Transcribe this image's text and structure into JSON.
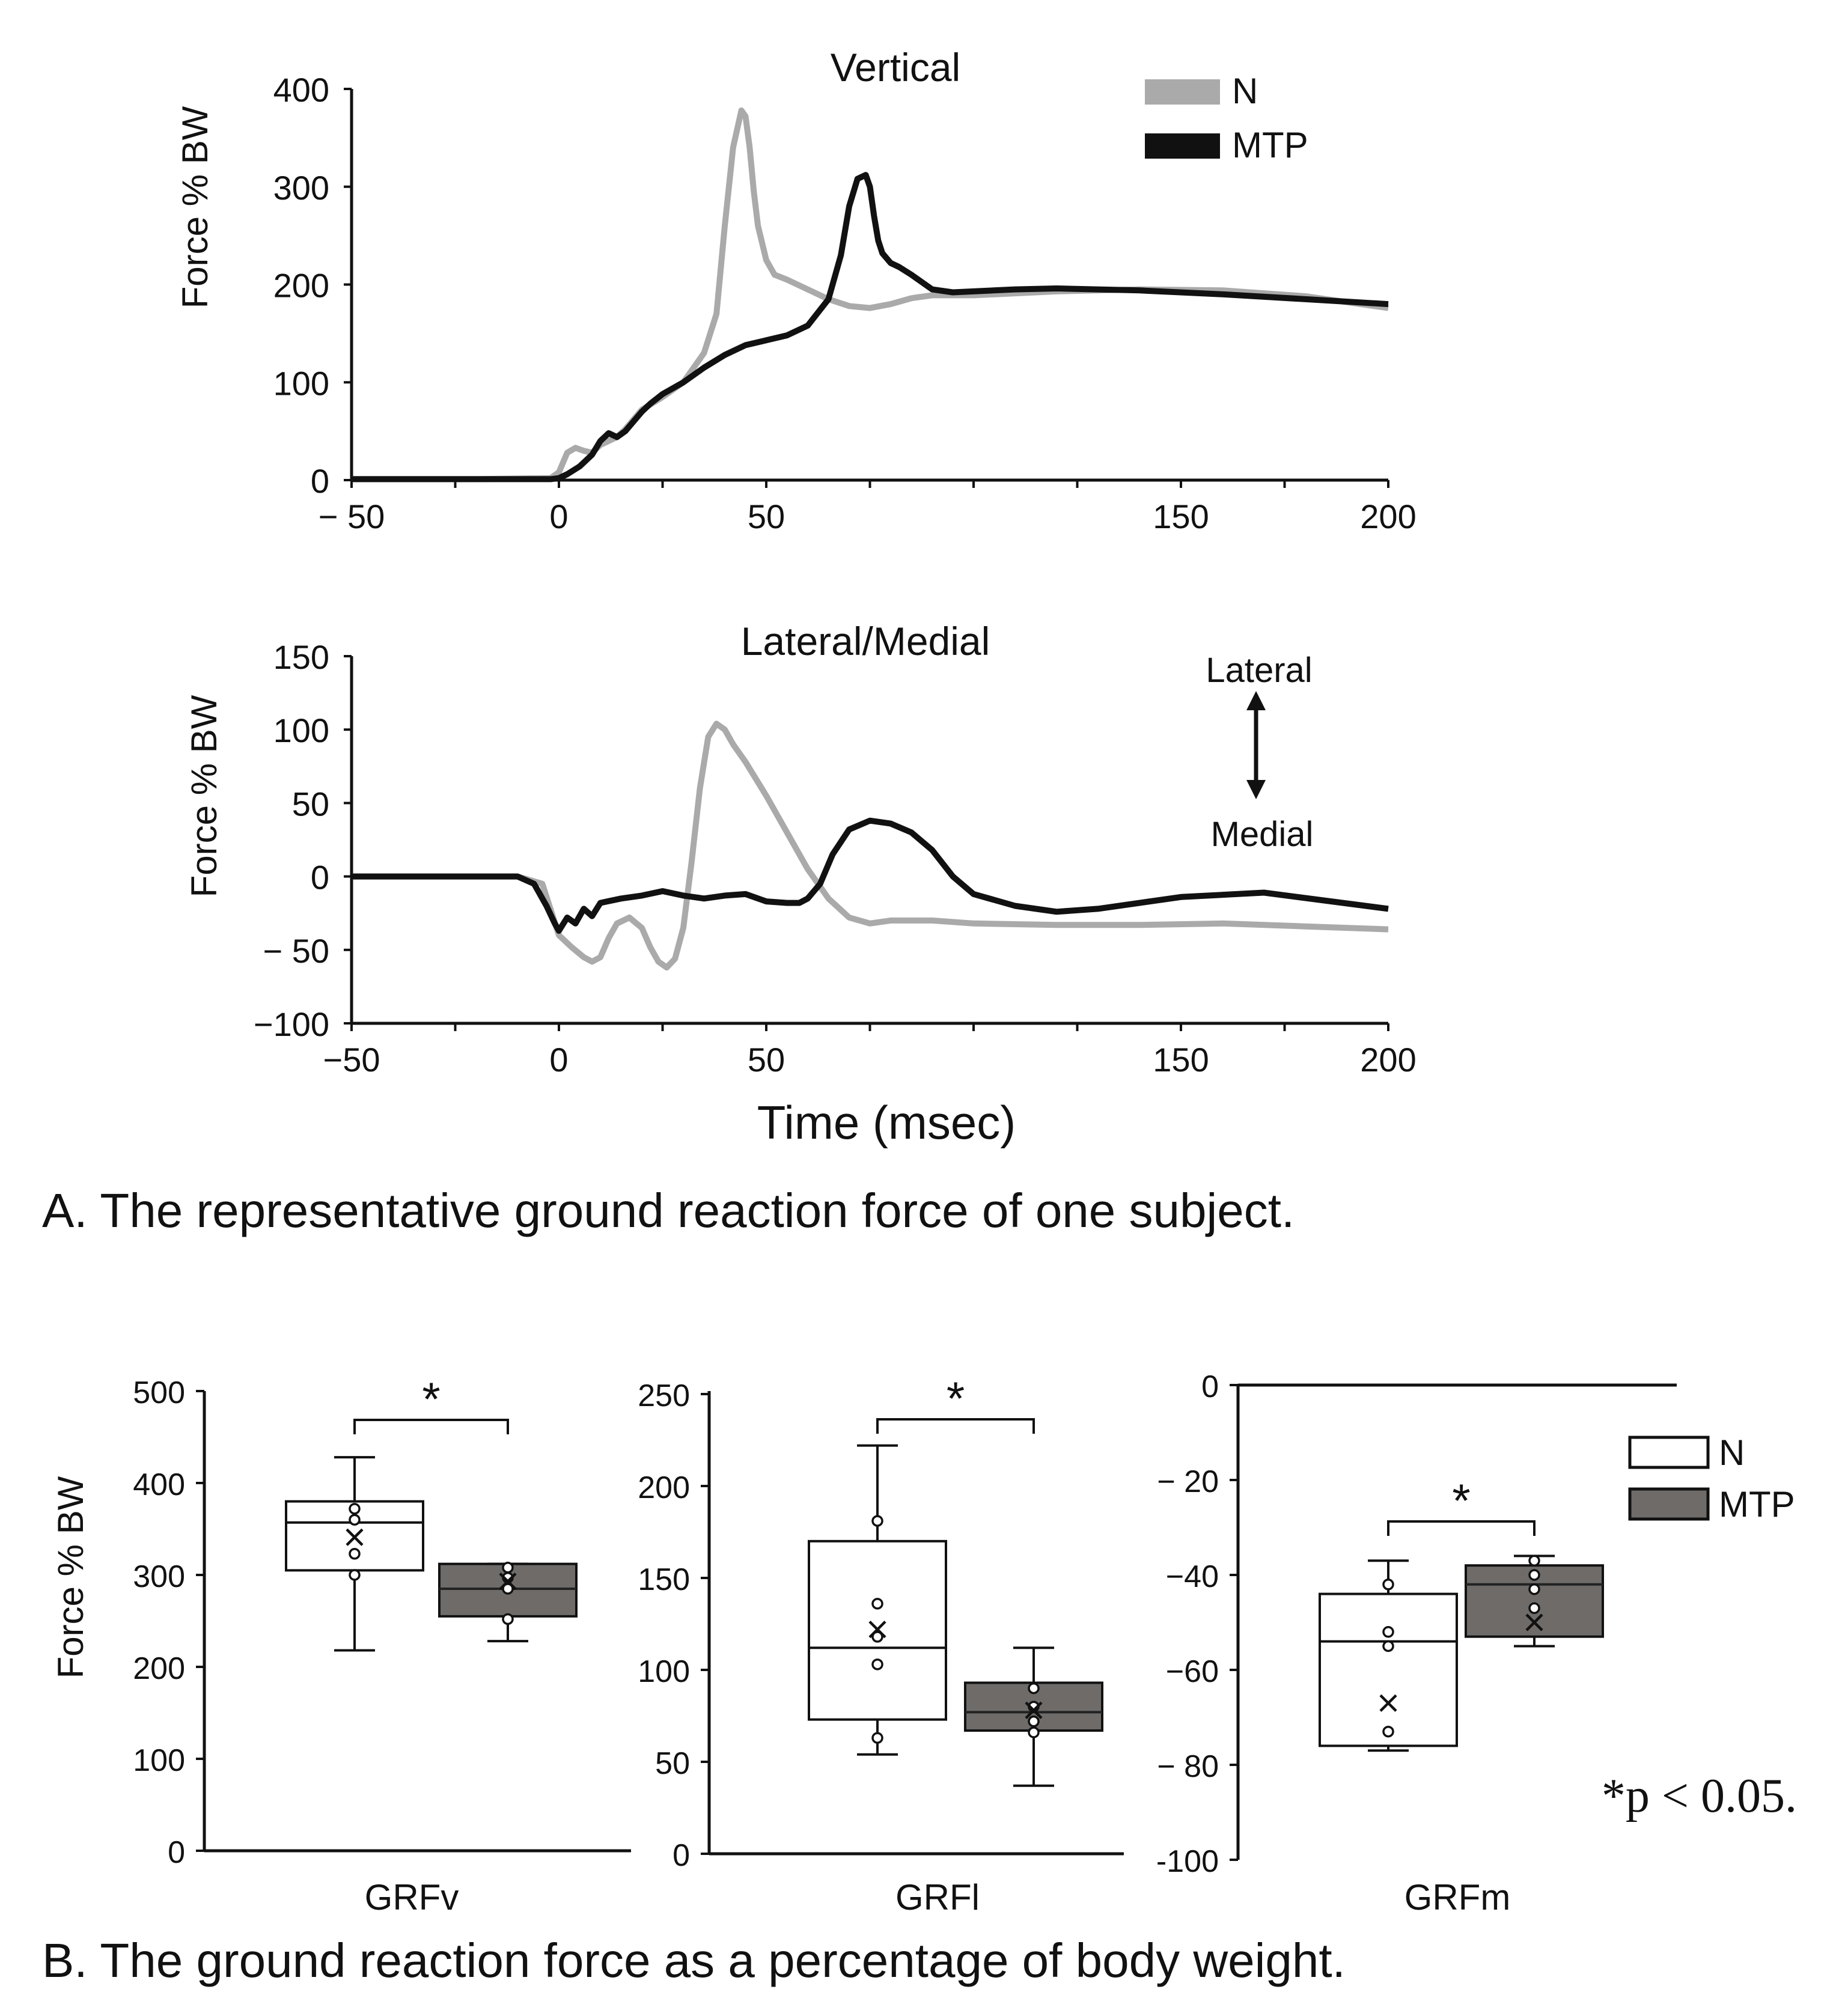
{
  "figure": {
    "caption_a": "A. The representative ground reaction force of one subject.",
    "caption_b": "B. The ground reaction force as a percentage of body weight.",
    "x_label": "Time (msec)",
    "significance_note": "*p < 0.05.",
    "star": "*"
  },
  "legend": {
    "n": "N",
    "mtp": "MTP"
  },
  "colors": {
    "n_line": "#aaaaaa",
    "mtp_line": "#111111",
    "n_box": "#ffffff",
    "mtp_box": "#6e6b69",
    "axis": "#111111"
  },
  "arrow_labels": {
    "lateral": "Lateral",
    "medial": "Medial"
  },
  "chart_data": [
    {
      "id": "vertical",
      "type": "line",
      "title": "Vertical",
      "xlabel": "",
      "ylabel": "Force % BW",
      "xlim": [
        -50,
        200
      ],
      "ylim": [
        0,
        400
      ],
      "x_ticks": [
        -50,
        0,
        50,
        150,
        200
      ],
      "x_tick_labels": [
        "− 50",
        "0",
        "50",
        "150",
        "200"
      ],
      "y_ticks": [
        0,
        100,
        200,
        300,
        400
      ],
      "y_tick_labels": [
        "0",
        "100",
        "200",
        "300",
        "400"
      ],
      "series": [
        {
          "name": "N",
          "x": [
            -50,
            -20,
            -2,
            0,
            2,
            4,
            6,
            8,
            10,
            12,
            14,
            16,
            18,
            20,
            25,
            30,
            35,
            38,
            40,
            42,
            44,
            45,
            46,
            47,
            48,
            50,
            52,
            55,
            60,
            65,
            70,
            75,
            80,
            85,
            90,
            100,
            120,
            140,
            160,
            180,
            200
          ],
          "y": [
            1,
            1,
            2,
            8,
            28,
            33,
            30,
            28,
            36,
            40,
            44,
            52,
            62,
            72,
            85,
            100,
            130,
            170,
            260,
            340,
            378,
            372,
            340,
            295,
            260,
            225,
            210,
            205,
            195,
            185,
            178,
            176,
            180,
            186,
            189,
            189,
            193,
            195,
            194,
            188,
            176
          ]
        },
        {
          "name": "MTP",
          "x": [
            -50,
            -20,
            -2,
            0,
            2,
            5,
            8,
            10,
            12,
            14,
            16,
            18,
            20,
            22,
            25,
            30,
            35,
            40,
            45,
            50,
            55,
            60,
            65,
            68,
            70,
            72,
            74,
            75,
            76,
            77,
            78,
            80,
            82,
            85,
            90,
            95,
            100,
            110,
            120,
            140,
            160,
            180,
            200
          ],
          "y": [
            1,
            1,
            1,
            2,
            6,
            14,
            26,
            40,
            48,
            44,
            50,
            60,
            70,
            78,
            88,
            100,
            115,
            128,
            138,
            143,
            148,
            158,
            185,
            230,
            280,
            308,
            312,
            300,
            270,
            245,
            232,
            222,
            218,
            210,
            195,
            192,
            193,
            195,
            196,
            194,
            190,
            185,
            180
          ]
        }
      ]
    },
    {
      "id": "lateral-medial",
      "type": "line",
      "title": "Lateral/Medial",
      "xlabel": "Time (msec)",
      "ylabel": "Force % BW",
      "xlim": [
        -50,
        200
      ],
      "ylim": [
        -100,
        150
      ],
      "x_ticks": [
        -50,
        0,
        50,
        150,
        200
      ],
      "x_tick_labels": [
        "−50",
        "0",
        "50",
        "150",
        "200"
      ],
      "y_ticks": [
        -100,
        -50,
        0,
        50,
        100,
        150
      ],
      "y_tick_labels": [
        "−100",
        "− 50",
        "0",
        "50",
        "100",
        "150"
      ],
      "series": [
        {
          "name": "N",
          "x": [
            -50,
            -10,
            -4,
            0,
            3,
            6,
            8,
            10,
            12,
            14,
            17,
            20,
            22,
            24,
            26,
            28,
            30,
            32,
            34,
            36,
            38,
            40,
            42,
            45,
            50,
            55,
            60,
            65,
            70,
            75,
            80,
            90,
            100,
            120,
            140,
            160,
            180,
            200
          ],
          "y": [
            0,
            0,
            -5,
            -40,
            -48,
            -55,
            -58,
            -55,
            -42,
            -32,
            -28,
            -35,
            -48,
            -58,
            -62,
            -56,
            -35,
            10,
            60,
            95,
            104,
            100,
            90,
            78,
            55,
            30,
            5,
            -15,
            -28,
            -32,
            -30,
            -30,
            -32,
            -33,
            -33,
            -32,
            -34,
            -36
          ]
        },
        {
          "name": "MTP",
          "x": [
            -50,
            -10,
            -6,
            -3,
            -1,
            0,
            2,
            4,
            6,
            8,
            10,
            15,
            20,
            25,
            30,
            35,
            40,
            45,
            50,
            55,
            58,
            60,
            63,
            66,
            70,
            75,
            80,
            85,
            90,
            95,
            100,
            110,
            120,
            130,
            150,
            170,
            200
          ],
          "y": [
            0,
            0,
            -5,
            -20,
            -32,
            -37,
            -28,
            -32,
            -22,
            -27,
            -18,
            -15,
            -13,
            -10,
            -13,
            -15,
            -13,
            -12,
            -17,
            -18,
            -18,
            -15,
            -5,
            15,
            32,
            38,
            36,
            30,
            18,
            0,
            -12,
            -20,
            -24,
            -22,
            -14,
            -11,
            -22
          ]
        }
      ]
    },
    {
      "id": "grfv",
      "type": "box",
      "xlabel": "GRFv",
      "ylabel": "Force % BW",
      "ylim": [
        0,
        500
      ],
      "y_ticks": [
        0,
        100,
        200,
        300,
        400,
        500
      ],
      "y_tick_labels": [
        "0",
        "100",
        "200",
        "300",
        "400",
        "500"
      ],
      "significant": true,
      "series": [
        {
          "name": "N",
          "min": 218,
          "q1": 305,
          "median": 357,
          "q3": 380,
          "max": 428,
          "mean": 341,
          "points": [
            300,
            323,
            360,
            372
          ]
        },
        {
          "name": "MTP",
          "min": 228,
          "q1": 255,
          "median": 285,
          "q3": 312,
          "max": 312,
          "mean": 293,
          "points": [
            252,
            285,
            297,
            308
          ]
        }
      ]
    },
    {
      "id": "grfl",
      "type": "box",
      "xlabel": "GRFl",
      "ylabel": "",
      "ylim": [
        0,
        250
      ],
      "y_ticks": [
        0,
        50,
        100,
        150,
        200,
        250
      ],
      "y_tick_labels": [
        "0",
        "50",
        "100",
        "150",
        "200",
        "250"
      ],
      "significant": true,
      "series": [
        {
          "name": "N",
          "min": 54,
          "q1": 73,
          "median": 112,
          "q3": 170,
          "max": 222,
          "mean": 122,
          "points": [
            63,
            103,
            118,
            136,
            181
          ]
        },
        {
          "name": "MTP",
          "min": 37,
          "q1": 67,
          "median": 77,
          "q3": 93,
          "max": 112,
          "mean": 78,
          "points": [
            66,
            72,
            80,
            90
          ]
        }
      ]
    },
    {
      "id": "grfm",
      "type": "box",
      "xlabel": "GRFm",
      "ylabel": "",
      "ylim": [
        -100,
        0
      ],
      "y_ticks": [
        -100,
        -80,
        -60,
        -40,
        -20,
        0
      ],
      "y_tick_labels": [
        "-100",
        "− 80",
        "−60",
        "−40",
        "− 20",
        "0"
      ],
      "significant": true,
      "series": [
        {
          "name": "N",
          "min": -77,
          "q1": -76,
          "median": -54,
          "q3": -44,
          "max": -37,
          "mean": -67,
          "points": [
            -73,
            -55,
            -52,
            -42
          ]
        },
        {
          "name": "MTP",
          "min": -55,
          "q1": -53,
          "median": -42,
          "q3": -38,
          "max": -36,
          "mean": -50,
          "points": [
            -47,
            -43,
            -40,
            -37
          ]
        }
      ]
    }
  ]
}
